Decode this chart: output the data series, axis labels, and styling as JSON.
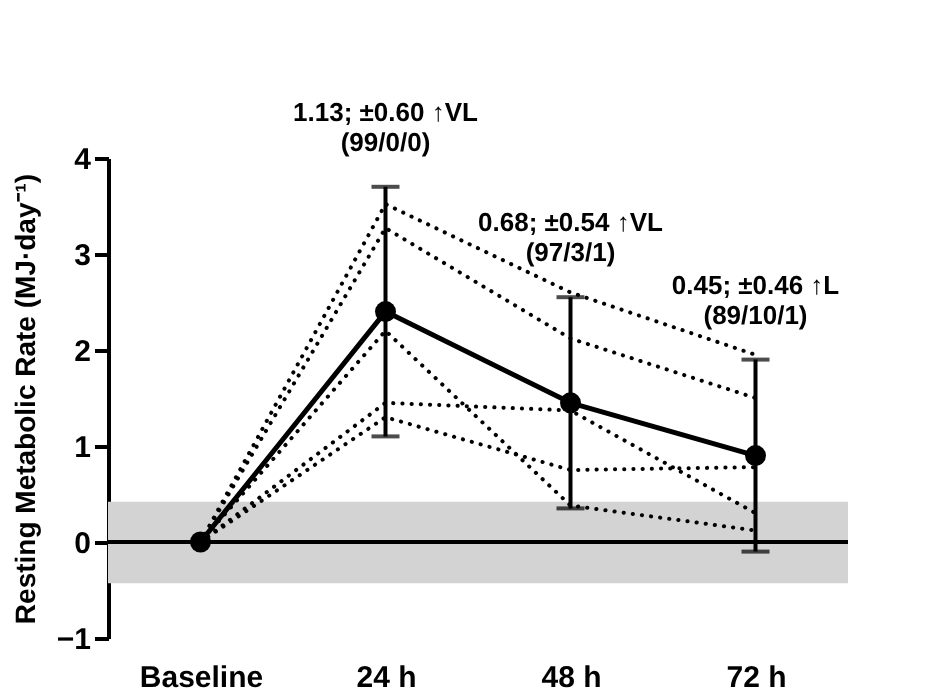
{
  "chart_data": {
    "type": "line",
    "ylabel": "Resting Metabolic Rate (MJ·day⁻¹)",
    "categories": [
      "Baseline",
      "24 h",
      "48 h",
      "72 h"
    ],
    "series": [
      {
        "color": "#000000",
        "line_style": "dotted",
        "marker": "none",
        "values": [
          0,
          3.52,
          2.6,
          1.95
        ]
      },
      {
        "color": "#000000",
        "line_style": "dotted",
        "marker": "none",
        "values": [
          0,
          3.27,
          2.12,
          1.5
        ]
      },
      {
        "color": "#000000",
        "line_style": "dotted",
        "marker": "none",
        "values": [
          0,
          2.2,
          0.38,
          0.12
        ]
      },
      {
        "color": "#000000",
        "line_style": "dotted",
        "marker": "none",
        "values": [
          0,
          1.45,
          1.37,
          0.3
        ]
      },
      {
        "color": "#000000",
        "line_style": "dotted",
        "marker": "none",
        "values": [
          0,
          1.3,
          0.75,
          0.78
        ]
      },
      {
        "color": "#000000",
        "line_style": "solid",
        "marker": "circle",
        "values": [
          0,
          2.4,
          1.45,
          0.9
        ],
        "errors": [
          null,
          [
            1.1,
            3.7
          ],
          [
            0.35,
            2.55
          ],
          [
            -0.1,
            1.9
          ]
        ]
      }
    ],
    "ylim": [
      -1,
      4
    ],
    "yticks": [
      -1,
      0,
      1,
      2,
      3,
      4
    ],
    "bands": [
      {
        "axis": "y",
        "from": -0.43,
        "to": 0.42,
        "color": "#d3d3d3"
      }
    ],
    "ref_lines": [
      {
        "axis": "y",
        "value": 0,
        "color": "#000000",
        "line_style": "solid"
      }
    ],
    "annotations": [
      "1.13; ±0.60 ↑VL\n(99/0/0)",
      "0.68; ±0.54 ↑VL\n(97/3/1)",
      "0.45; ±0.46 ↑L\n(89/10/1)"
    ],
    "grid": false
  }
}
